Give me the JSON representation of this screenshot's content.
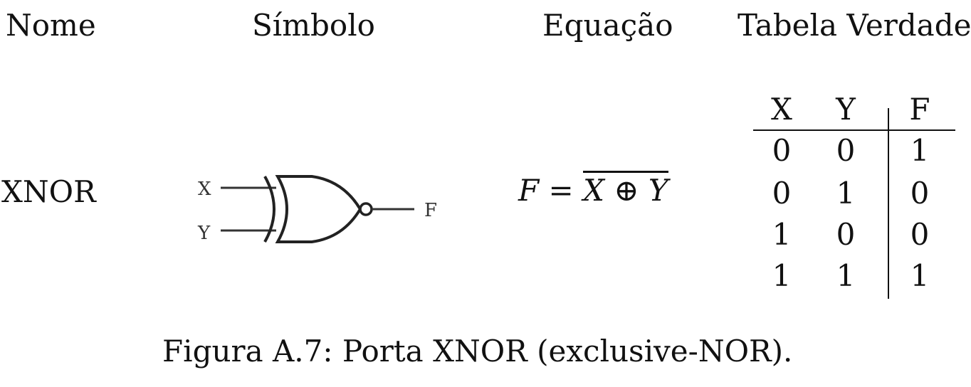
{
  "headers": {
    "nome": "Nome",
    "simbolo": "Símbolo",
    "equacao": "Equação",
    "tabela": "Tabela Verdade"
  },
  "gate": {
    "name": "XNOR",
    "symbol": {
      "input_x": "X",
      "input_y": "Y",
      "output": "F"
    },
    "equation": {
      "lhs": "F",
      "eq": "=",
      "x": "X",
      "op": "⊕",
      "y": "Y"
    }
  },
  "truth_table": {
    "columns": [
      "X",
      "Y",
      "F"
    ],
    "rows": [
      [
        "0",
        "0",
        "1"
      ],
      [
        "0",
        "1",
        "0"
      ],
      [
        "1",
        "0",
        "0"
      ],
      [
        "1",
        "1",
        "1"
      ]
    ]
  },
  "caption": "Figura A.7: Porta XNOR (exclusive-NOR)."
}
